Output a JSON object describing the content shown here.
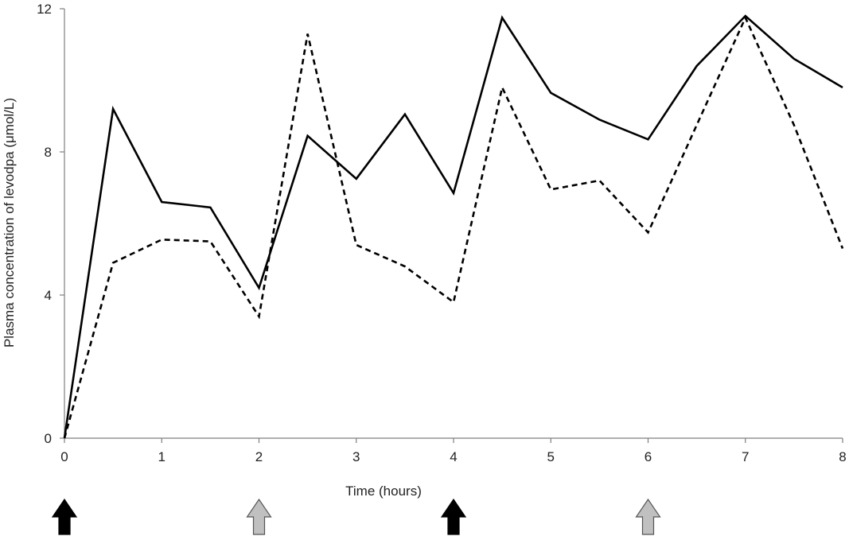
{
  "chart_data": {
    "type": "line",
    "title": "",
    "xlabel": "Time (hours)",
    "ylabel": "Plasma concentration of levodpa (μmol/L)",
    "xlim": [
      0,
      8
    ],
    "ylim": [
      0,
      12
    ],
    "x_ticks": [
      0,
      1,
      2,
      3,
      4,
      5,
      6,
      7,
      8
    ],
    "y_ticks": [
      0,
      4,
      8,
      12
    ],
    "grid": false,
    "legend": "none",
    "series": [
      {
        "line_style": "solid",
        "color": "#000000",
        "x": [
          0,
          0.5,
          1,
          1.5,
          2,
          2.5,
          3,
          3.5,
          4,
          4.5,
          5,
          5.5,
          6,
          6.5,
          7,
          7.5,
          8
        ],
        "values": [
          0,
          9.2,
          6.6,
          6.45,
          4.2,
          8.45,
          7.25,
          9.05,
          6.85,
          11.75,
          9.65,
          8.9,
          8.35,
          10.4,
          11.8,
          10.6,
          9.8
        ]
      },
      {
        "line_style": "dashed",
        "color": "#000000",
        "x": [
          0,
          0.5,
          1,
          1.5,
          2,
          2.5,
          3,
          3.5,
          4,
          4.5,
          5,
          5.5,
          6,
          6.5,
          7,
          7.5,
          8
        ],
        "values": [
          0,
          4.9,
          5.55,
          5.5,
          3.4,
          11.3,
          5.4,
          4.8,
          3.8,
          9.8,
          6.95,
          7.2,
          5.75,
          8.75,
          11.75,
          8.75,
          5.3
        ]
      }
    ],
    "dose_markers": [
      {
        "x": 0,
        "color": "#000000"
      },
      {
        "x": 2,
        "color": "#c0c0c0"
      },
      {
        "x": 4,
        "color": "#000000"
      },
      {
        "x": 6,
        "color": "#c0c0c0"
      }
    ]
  }
}
